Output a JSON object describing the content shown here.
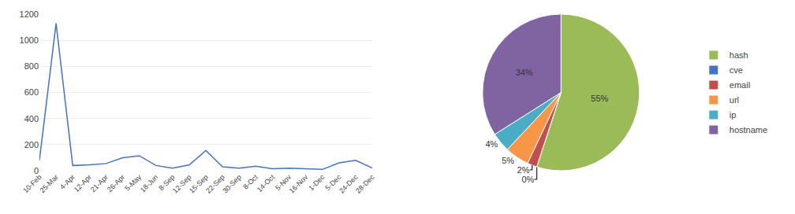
{
  "chart_data": [
    {
      "type": "line",
      "categories": [
        "10-Feb",
        "25-Mar",
        "4-Apr",
        "12-Apr",
        "21-Apr",
        "26-Apr",
        "5-May",
        "18-Jun",
        "8-Sep",
        "12-Sep",
        "15-Sep",
        "22-Sep",
        "30-Sep",
        "8-Oct",
        "14-Oct",
        "5-Nov",
        "16-Nov",
        "1-Dec",
        "5-Dec",
        "24-Dec",
        "28-Dec"
      ],
      "values": [
        80,
        1130,
        40,
        45,
        55,
        100,
        115,
        40,
        20,
        45,
        155,
        30,
        20,
        35,
        15,
        20,
        15,
        10,
        60,
        80,
        20
      ],
      "color": "#4472c4",
      "ylim": [
        0,
        1200
      ],
      "yticks": [
        0,
        200,
        400,
        600,
        800,
        1000,
        1200
      ],
      "grid": true
    },
    {
      "type": "pie",
      "categories": [
        "hash",
        "cve",
        "email",
        "url",
        "ip",
        "hostname"
      ],
      "values": [
        55,
        0,
        2,
        5,
        4,
        34
      ],
      "value_labels": [
        "55%",
        "0%",
        "2%",
        "5%",
        "4%",
        "34%"
      ],
      "colors": [
        "#9bbb59",
        "#4472c4",
        "#c0504d",
        "#f79646",
        "#4bacc6",
        "#8064a2"
      ],
      "data_labels": true,
      "legend": "right"
    }
  ]
}
